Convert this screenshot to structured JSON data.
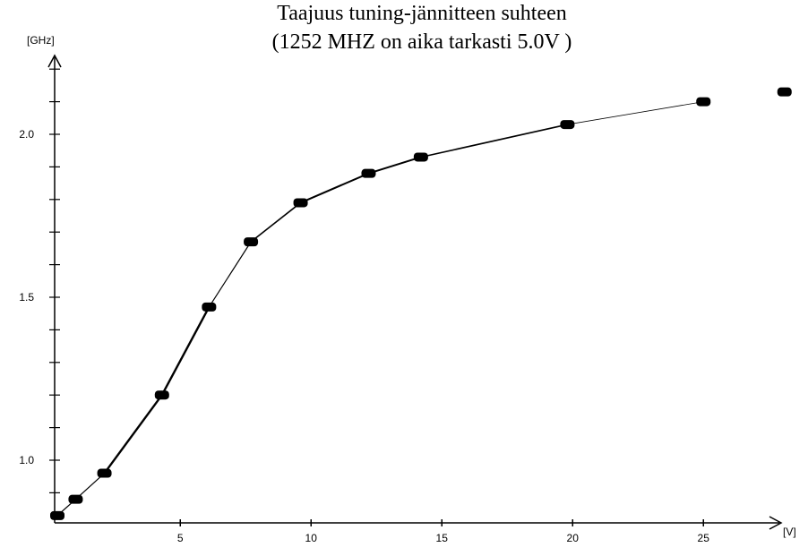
{
  "chart_data": {
    "type": "line",
    "title": "Taajuus tuning-jännitteen suhteen",
    "subtitle": "(1252 MHZ on aika tarkasti 5.0V )",
    "xlabel": "[V]",
    "ylabel": "[GHz]",
    "xlim": [
      -0.3,
      28.4
    ],
    "ylim": [
      0.82,
      2.28
    ],
    "grid": false,
    "x_ticks": [
      5,
      10,
      15,
      20,
      25
    ],
    "y_ticks": [
      1.0,
      1.5,
      2.0
    ],
    "y_minor_step": 0.1,
    "series": [
      {
        "x": [
          0.3,
          1.0,
          2.1,
          4.3,
          6.1,
          7.7,
          9.6,
          12.2,
          14.2,
          19.8,
          25.0,
          28.1
        ],
        "y": [
          0.83,
          0.88,
          0.96,
          1.2,
          1.47,
          1.67,
          1.79,
          1.88,
          1.93,
          2.03,
          2.1,
          2.13
        ]
      }
    ]
  }
}
